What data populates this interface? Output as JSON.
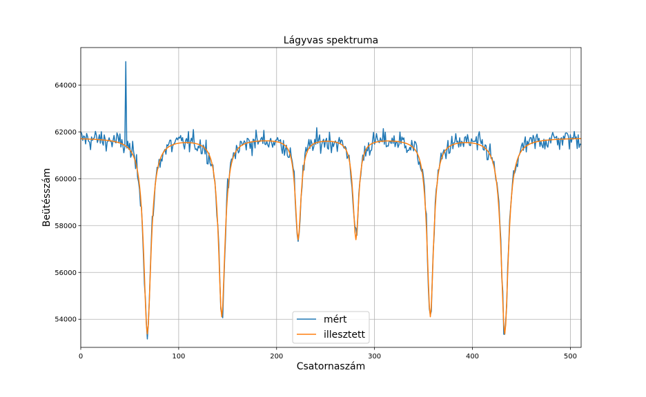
{
  "chart_data": {
    "type": "line",
    "title": "Lágyvas spektruma",
    "xlabel": "Csatornaszám",
    "ylabel": "Beütésszám",
    "xlim": [
      0,
      511
    ],
    "ylim": [
      52800,
      65600
    ],
    "xticks": [
      0,
      100,
      200,
      300,
      400,
      500
    ],
    "yticks": [
      54000,
      56000,
      58000,
      60000,
      62000,
      64000
    ],
    "grid": true,
    "legend_position": "lower center",
    "baseline": 61750,
    "dips": [
      {
        "center": 68,
        "depth": 8350,
        "width": 9
      },
      {
        "center": 144,
        "depth": 7600,
        "width": 8
      },
      {
        "center": 222,
        "depth": 4300,
        "width": 7
      },
      {
        "center": 281,
        "depth": 4300,
        "width": 7
      },
      {
        "center": 357,
        "depth": 7600,
        "width": 8
      },
      {
        "center": 433,
        "depth": 8350,
        "width": 9
      }
    ],
    "spike": {
      "x": 46,
      "y": 65000
    },
    "series": [
      {
        "name": "mért",
        "color": "#1f77b4"
      },
      {
        "name": "illesztett",
        "color": "#ff7f0e"
      }
    ]
  }
}
